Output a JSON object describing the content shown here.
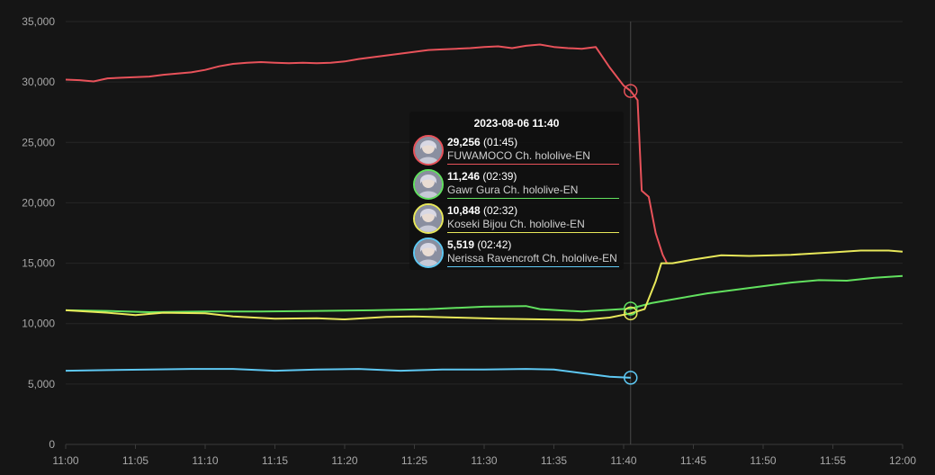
{
  "chart_data": {
    "type": "line",
    "xlim": [
      "11:00",
      "12:00"
    ],
    "ylim": [
      0,
      35000
    ],
    "x_ticks": [
      "11:00",
      "11:05",
      "11:10",
      "11:15",
      "11:20",
      "11:25",
      "11:30",
      "11:35",
      "11:40",
      "11:45",
      "11:50",
      "11:55",
      "12:00"
    ],
    "y_ticks": [
      "0",
      "5,000",
      "10,000",
      "15,000",
      "20,000",
      "25,000",
      "30,000",
      "35,000"
    ],
    "grid": true,
    "hover_minute": 40.5,
    "series": [
      {
        "color": "#e8525a",
        "points": [
          [
            0,
            30200
          ],
          [
            1,
            30150
          ],
          [
            2,
            30050
          ],
          [
            3,
            30300
          ],
          [
            4,
            30350
          ],
          [
            5,
            30400
          ],
          [
            6,
            30450
          ],
          [
            7,
            30600
          ],
          [
            8,
            30700
          ],
          [
            9,
            30800
          ],
          [
            10,
            31000
          ],
          [
            11,
            31300
          ],
          [
            12,
            31500
          ],
          [
            13,
            31600
          ],
          [
            14,
            31650
          ],
          [
            15,
            31600
          ],
          [
            16,
            31550
          ],
          [
            17,
            31600
          ],
          [
            18,
            31550
          ],
          [
            19,
            31600
          ],
          [
            20,
            31700
          ],
          [
            21,
            31900
          ],
          [
            22,
            32050
          ],
          [
            23,
            32200
          ],
          [
            24,
            32350
          ],
          [
            25,
            32500
          ],
          [
            26,
            32650
          ],
          [
            27,
            32700
          ],
          [
            28,
            32750
          ],
          [
            29,
            32800
          ],
          [
            30,
            32900
          ],
          [
            31,
            32950
          ],
          [
            32,
            32800
          ],
          [
            33,
            33000
          ],
          [
            34,
            33100
          ],
          [
            35,
            32900
          ],
          [
            36,
            32800
          ],
          [
            37,
            32750
          ],
          [
            38,
            32900
          ],
          [
            39,
            31200
          ],
          [
            40,
            29700
          ],
          [
            40.5,
            29256
          ],
          [
            41,
            28500
          ],
          [
            41.3,
            21000
          ],
          [
            41.8,
            20500
          ],
          [
            42.3,
            17500
          ],
          [
            42.8,
            15700
          ],
          [
            43.1,
            15000
          ]
        ]
      },
      {
        "color": "#62e15f",
        "points": [
          [
            0,
            11100
          ],
          [
            3,
            11050
          ],
          [
            6,
            10950
          ],
          [
            10,
            11000
          ],
          [
            14,
            11000
          ],
          [
            18,
            11050
          ],
          [
            22,
            11100
          ],
          [
            26,
            11200
          ],
          [
            30,
            11400
          ],
          [
            33,
            11450
          ],
          [
            34,
            11200
          ],
          [
            37,
            11000
          ],
          [
            40.5,
            11246
          ],
          [
            42,
            11700
          ],
          [
            44,
            12100
          ],
          [
            46,
            12500
          ],
          [
            48,
            12800
          ],
          [
            50,
            13100
          ],
          [
            52,
            13400
          ],
          [
            54,
            13600
          ],
          [
            56,
            13550
          ],
          [
            58,
            13800
          ],
          [
            60,
            13950
          ]
        ]
      },
      {
        "color": "#e8e85a",
        "points": [
          [
            0,
            11100
          ],
          [
            3,
            10900
          ],
          [
            5,
            10700
          ],
          [
            7,
            10900
          ],
          [
            10,
            10850
          ],
          [
            12,
            10600
          ],
          [
            15,
            10400
          ],
          [
            18,
            10450
          ],
          [
            20,
            10350
          ],
          [
            23,
            10550
          ],
          [
            25,
            10600
          ],
          [
            28,
            10500
          ],
          [
            31,
            10400
          ],
          [
            34,
            10350
          ],
          [
            37,
            10300
          ],
          [
            39,
            10500
          ],
          [
            40.5,
            10848
          ],
          [
            41.5,
            11200
          ],
          [
            42.3,
            13500
          ],
          [
            42.7,
            15000
          ],
          [
            43.5,
            15000
          ],
          [
            45,
            15300
          ],
          [
            47,
            15650
          ],
          [
            49,
            15600
          ],
          [
            52,
            15700
          ],
          [
            55,
            15900
          ],
          [
            57,
            16050
          ],
          [
            59,
            16050
          ],
          [
            60,
            15950
          ]
        ]
      },
      {
        "color": "#5ec8f3",
        "points": [
          [
            0,
            6100
          ],
          [
            3,
            6150
          ],
          [
            6,
            6200
          ],
          [
            9,
            6250
          ],
          [
            12,
            6250
          ],
          [
            15,
            6100
          ],
          [
            18,
            6200
          ],
          [
            21,
            6250
          ],
          [
            24,
            6100
          ],
          [
            27,
            6200
          ],
          [
            30,
            6200
          ],
          [
            33,
            6250
          ],
          [
            35,
            6200
          ],
          [
            37,
            5900
          ],
          [
            39,
            5600
          ],
          [
            40.5,
            5519
          ]
        ]
      }
    ]
  },
  "tooltip": {
    "title": "2023-08-06 11:40",
    "entries": [
      {
        "value": "29,256",
        "duration": "(01:45)",
        "channel": "FUWAMOCO Ch. hololive-EN",
        "color": "#e8525a"
      },
      {
        "value": "11,246",
        "duration": "(02:39)",
        "channel": "Gawr Gura Ch. hololive-EN",
        "color": "#62e15f"
      },
      {
        "value": "10,848",
        "duration": "(02:32)",
        "channel": "Koseki Bijou Ch. hololive-EN",
        "color": "#e8e85a"
      },
      {
        "value": "5,519",
        "duration": "(02:42)",
        "channel": "Nerissa Ravencroft Ch. hololive-EN",
        "color": "#5ec8f3"
      }
    ]
  }
}
